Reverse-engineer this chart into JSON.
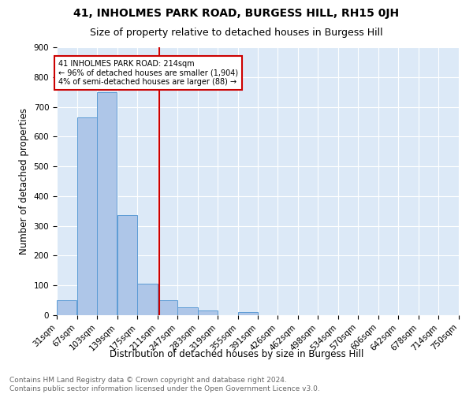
{
  "title1": "41, INHOLMES PARK ROAD, BURGESS HILL, RH15 0JH",
  "title2": "Size of property relative to detached houses in Burgess Hill",
  "xlabel": "Distribution of detached houses by size in Burgess Hill",
  "ylabel": "Number of detached properties",
  "bin_labels": [
    "31sqm",
    "67sqm",
    "103sqm",
    "139sqm",
    "175sqm",
    "211sqm",
    "247sqm",
    "283sqm",
    "319sqm",
    "355sqm",
    "391sqm",
    "426sqm",
    "462sqm",
    "498sqm",
    "534sqm",
    "570sqm",
    "606sqm",
    "642sqm",
    "678sqm",
    "714sqm",
    "750sqm"
  ],
  "bin_edges": [
    31,
    67,
    103,
    139,
    175,
    211,
    247,
    283,
    319,
    355,
    391,
    426,
    462,
    498,
    534,
    570,
    606,
    642,
    678,
    714,
    750
  ],
  "bar_values": [
    50,
    665,
    748,
    335,
    107,
    50,
    26,
    16,
    0,
    10,
    0,
    0,
    0,
    0,
    0,
    0,
    0,
    0,
    0,
    0
  ],
  "bar_color": "#aec6e8",
  "bar_edge_color": "#5b9bd5",
  "vline_x": 214,
  "vline_color": "#cc0000",
  "annotation_text": "41 INHOLMES PARK ROAD: 214sqm\n← 96% of detached houses are smaller (1,904)\n4% of semi-detached houses are larger (88) →",
  "annotation_box_color": "#ffffff",
  "annotation_box_edge": "#cc0000",
  "ylim": [
    0,
    900
  ],
  "yticks": [
    0,
    100,
    200,
    300,
    400,
    500,
    600,
    700,
    800,
    900
  ],
  "background_color": "#dce9f7",
  "footer_text": "Contains HM Land Registry data © Crown copyright and database right 2024.\nContains public sector information licensed under the Open Government Licence v3.0.",
  "title1_fontsize": 10,
  "title2_fontsize": 9,
  "xlabel_fontsize": 8.5,
  "ylabel_fontsize": 8.5,
  "tick_fontsize": 7.5,
  "footer_fontsize": 6.5
}
